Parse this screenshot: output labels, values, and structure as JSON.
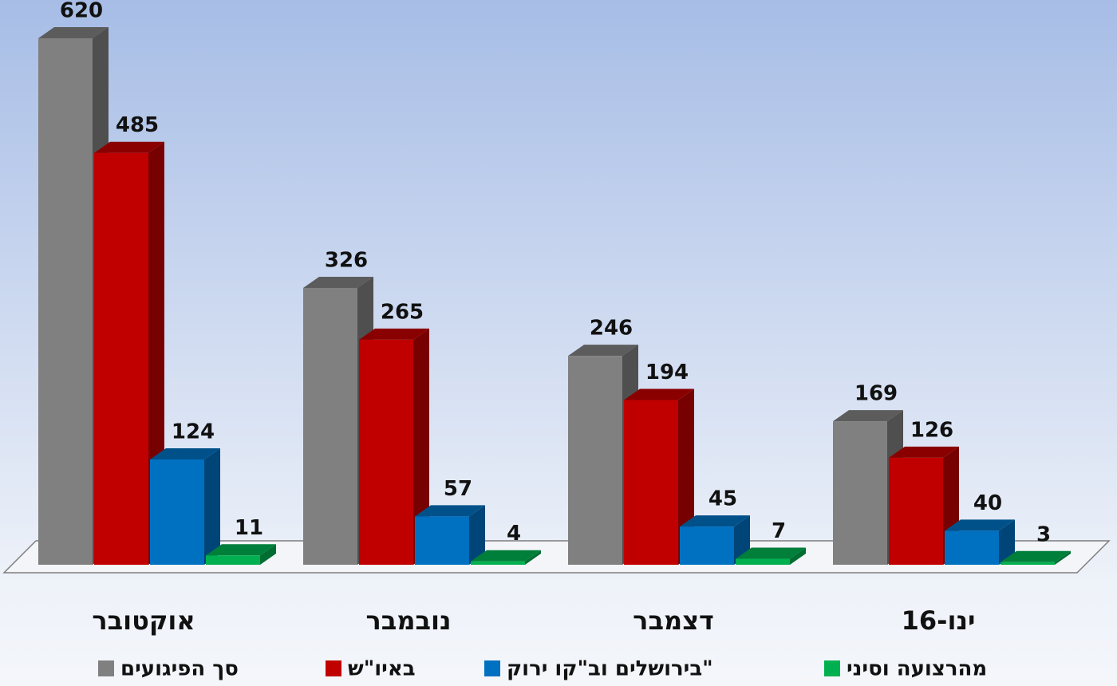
{
  "chart_data": {
    "type": "bar3d",
    "categories": [
      "אוקטובר",
      "נובמבר",
      "דצמבר",
      "ינו-16"
    ],
    "series": [
      {
        "name": "סך הפיגועים",
        "color": "#808080",
        "values": [
          620,
          326,
          246,
          169
        ]
      },
      {
        "name": "באיו\"ש",
        "color": "#c00000",
        "values": [
          485,
          265,
          194,
          126
        ]
      },
      {
        "name": "בירושלים וב\"קו ירוק\"",
        "color": "#0070c0",
        "values": [
          124,
          57,
          45,
          40
        ]
      },
      {
        "name": "מהרצועה וסיני",
        "color": "#00b050",
        "values": [
          11,
          4,
          7,
          3
        ]
      }
    ]
  }
}
